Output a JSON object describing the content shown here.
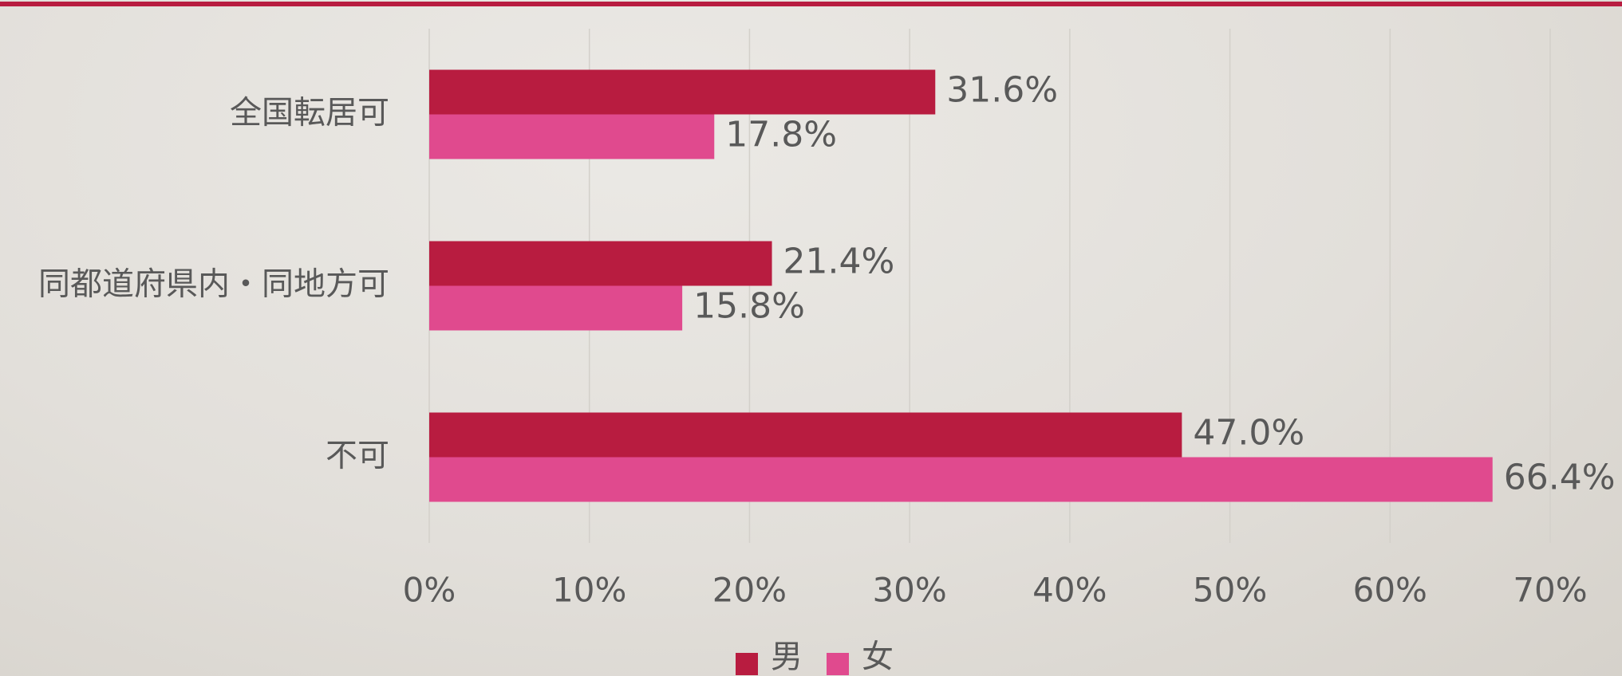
{
  "chart_data": {
    "type": "bar",
    "orientation": "horizontal",
    "categories": [
      "全国転居可",
      "同都道府県内・同地方可",
      "不可"
    ],
    "series": [
      {
        "name": "男",
        "color": "#b81c40",
        "values": [
          31.6,
          21.4,
          47.0
        ],
        "value_labels": [
          "31.6%",
          "21.4%",
          "47.0%"
        ]
      },
      {
        "name": "女",
        "color": "#e04a8e",
        "values": [
          17.8,
          15.8,
          66.4
        ],
        "value_labels": [
          "17.8%",
          "15.8%",
          "66.4%"
        ]
      }
    ],
    "xlim": [
      0,
      70
    ],
    "xticks": [
      {
        "value": 0,
        "label": "0%"
      },
      {
        "value": 10,
        "label": "10%"
      },
      {
        "value": 20,
        "label": "20%"
      },
      {
        "value": 30,
        "label": "30%"
      },
      {
        "value": 40,
        "label": "40%"
      },
      {
        "value": 50,
        "label": "50%"
      },
      {
        "value": 60,
        "label": "60%"
      },
      {
        "value": 70,
        "label": "70%"
      }
    ],
    "grid": true,
    "legend": "bottom"
  }
}
